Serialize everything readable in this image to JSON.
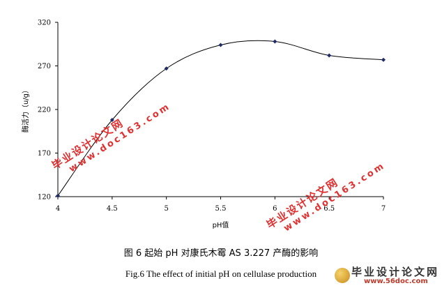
{
  "chart_data": {
    "type": "line",
    "x": [
      4,
      4.5,
      5,
      5.5,
      6,
      6.5,
      7
    ],
    "series": [
      {
        "values": [
          121,
          208,
          267,
          294,
          298,
          282,
          277
        ]
      }
    ],
    "xticks": [
      "4",
      "4.5",
      "5",
      "5.5",
      "6",
      "6.5",
      "7"
    ],
    "yticks": [
      "120",
      "170",
      "220",
      "270",
      "320"
    ],
    "xlabel": "pH值",
    "ylabel": "酶活力（u/g）",
    "xlim": [
      4,
      7
    ],
    "ylim": [
      120,
      320
    ],
    "grid": false,
    "smooth": true,
    "marker": "diamond",
    "line_color": "#000000",
    "marker_color": "#1f2a6b"
  },
  "caption": {
    "cn": "图 6 起始 pH 对康氏木霉 AS 3.227 产酶的影响",
    "en": "Fig.6 The effect of initial pH on cellulase production"
  },
  "watermarks": [
    {
      "cn": "毕业设计论文网",
      "url": "www.doc163.com"
    },
    {
      "cn": "毕业设计论文网",
      "url": "www.doc163.com"
    }
  ],
  "logo": {
    "name": "毕业设计论文网",
    "url": "www.56doc.com"
  }
}
